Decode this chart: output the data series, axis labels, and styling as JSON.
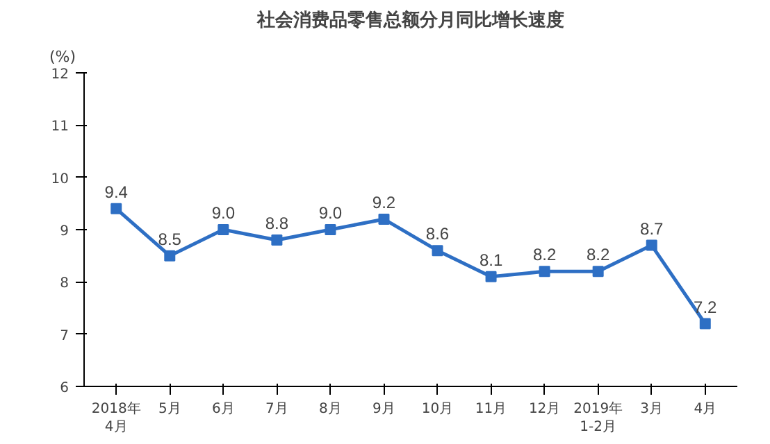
{
  "chart_data": {
    "type": "line",
    "title": "社会消费品零售总额分月同比增长速度",
    "ylabel": "(%)",
    "categories": [
      "2018年\n4月",
      "5月",
      "6月",
      "7月",
      "8月",
      "9月",
      "10月",
      "11月",
      "12月",
      "2019年\n1-2月",
      "3月",
      "4月"
    ],
    "values": [
      9.4,
      8.5,
      9.0,
      8.8,
      9.0,
      9.2,
      8.6,
      8.1,
      8.2,
      8.2,
      8.7,
      7.2
    ],
    "value_labels": [
      "9.4",
      "8.5",
      "9.0",
      "8.8",
      "9.0",
      "9.2",
      "8.6",
      "8.1",
      "8.2",
      "8.2",
      "8.7",
      "7.2"
    ],
    "color": "#2e6fc4",
    "marker": "square",
    "line_style": "solid",
    "grid": false,
    "ylim": [
      6,
      12
    ],
    "yticks": [
      6,
      7,
      8,
      9,
      10,
      11,
      12
    ]
  }
}
